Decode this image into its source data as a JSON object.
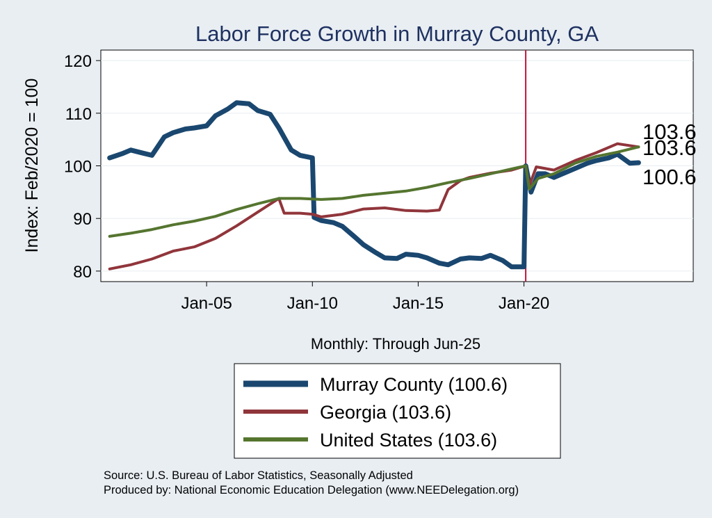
{
  "chart_data": {
    "type": "line",
    "title": "Labor Force Growth in Murray  County, GA",
    "xlabel": "Monthly: Through Jun-25",
    "ylabel": "Index: Feb/2020 = 100",
    "x_range": [
      "2000-01",
      "2028-01"
    ],
    "ylim": [
      78,
      122
    ],
    "yticks": [
      80,
      90,
      100,
      110,
      120
    ],
    "xticks": [
      {
        "x": "2005-01",
        "label": "Jan-05"
      },
      {
        "x": "2010-01",
        "label": "Jan-10"
      },
      {
        "x": "2015-01",
        "label": "Jan-15"
      },
      {
        "x": "2020-01",
        "label": "Jan-20"
      }
    ],
    "grid": true,
    "reference_line": "2020-02",
    "legend_position": "bottom",
    "series": [
      {
        "name": "Murray  County (100.6)",
        "color": "#1a476f",
        "end_label": "100.6",
        "points": [
          [
            "2000-06",
            101.5
          ],
          [
            "2001-01",
            102.3
          ],
          [
            "2001-06",
            103.0
          ],
          [
            "2002-01",
            102.4
          ],
          [
            "2002-06",
            102.0
          ],
          [
            "2003-01",
            105.5
          ],
          [
            "2003-06",
            106.3
          ],
          [
            "2004-01",
            107.0
          ],
          [
            "2004-06",
            107.2
          ],
          [
            "2005-01",
            107.6
          ],
          [
            "2005-06",
            109.5
          ],
          [
            "2006-01",
            110.8
          ],
          [
            "2006-06",
            112.0
          ],
          [
            "2007-01",
            111.8
          ],
          [
            "2007-06",
            110.5
          ],
          [
            "2008-01",
            109.8
          ],
          [
            "2008-06",
            107.2
          ],
          [
            "2009-01",
            103.0
          ],
          [
            "2009-06",
            102.0
          ],
          [
            "2010-01",
            101.5
          ],
          [
            "2010-02",
            90.2
          ],
          [
            "2010-06",
            89.6
          ],
          [
            "2011-01",
            89.2
          ],
          [
            "2011-06",
            88.5
          ],
          [
            "2012-01",
            86.5
          ],
          [
            "2012-06",
            85.0
          ],
          [
            "2013-01",
            83.5
          ],
          [
            "2013-06",
            82.5
          ],
          [
            "2014-01",
            82.4
          ],
          [
            "2014-06",
            83.2
          ],
          [
            "2015-01",
            83.0
          ],
          [
            "2015-06",
            82.5
          ],
          [
            "2016-01",
            81.5
          ],
          [
            "2016-06",
            81.2
          ],
          [
            "2017-01",
            82.3
          ],
          [
            "2017-06",
            82.5
          ],
          [
            "2018-01",
            82.4
          ],
          [
            "2018-06",
            83.0
          ],
          [
            "2019-01",
            82.0
          ],
          [
            "2019-06",
            80.8
          ],
          [
            "2020-01",
            80.8
          ],
          [
            "2020-02",
            100.0
          ],
          [
            "2020-05",
            95.0
          ],
          [
            "2020-09",
            98.5
          ],
          [
            "2021-01",
            98.5
          ],
          [
            "2021-06",
            97.8
          ],
          [
            "2022-01",
            98.8
          ],
          [
            "2022-06",
            99.5
          ],
          [
            "2023-01",
            100.5
          ],
          [
            "2023-06",
            101.0
          ],
          [
            "2024-01",
            101.5
          ],
          [
            "2024-06",
            102.2
          ],
          [
            "2025-01",
            100.5
          ],
          [
            "2025-06",
            100.6
          ]
        ]
      },
      {
        "name": "Georgia (103.6)",
        "color": "#90353b",
        "end_label": "103.6",
        "points": [
          [
            "2000-06",
            80.4
          ],
          [
            "2001-06",
            81.2
          ],
          [
            "2002-06",
            82.3
          ],
          [
            "2003-06",
            83.8
          ],
          [
            "2004-06",
            84.6
          ],
          [
            "2005-06",
            86.2
          ],
          [
            "2006-06",
            88.6
          ],
          [
            "2007-06",
            91.2
          ],
          [
            "2008-06",
            93.8
          ],
          [
            "2008-09",
            91.0
          ],
          [
            "2009-06",
            91.0
          ],
          [
            "2010-01",
            90.8
          ],
          [
            "2010-06",
            90.3
          ],
          [
            "2011-06",
            90.8
          ],
          [
            "2012-06",
            91.8
          ],
          [
            "2013-06",
            92.0
          ],
          [
            "2014-06",
            91.5
          ],
          [
            "2015-06",
            91.4
          ],
          [
            "2016-01",
            91.6
          ],
          [
            "2016-06",
            95.5
          ],
          [
            "2017-01",
            97.2
          ],
          [
            "2017-06",
            97.8
          ],
          [
            "2018-06",
            98.6
          ],
          [
            "2019-06",
            99.2
          ],
          [
            "2020-02",
            100.0
          ],
          [
            "2020-04",
            96.2
          ],
          [
            "2020-08",
            99.8
          ],
          [
            "2021-06",
            99.2
          ],
          [
            "2022-06",
            101.0
          ],
          [
            "2023-06",
            102.5
          ],
          [
            "2024-06",
            104.2
          ],
          [
            "2025-06",
            103.6
          ]
        ]
      },
      {
        "name": "United States (103.6)",
        "color": "#55752f",
        "end_label": "103.6",
        "points": [
          [
            "2000-06",
            86.6
          ],
          [
            "2001-06",
            87.2
          ],
          [
            "2002-06",
            87.9
          ],
          [
            "2003-06",
            88.8
          ],
          [
            "2004-06",
            89.5
          ],
          [
            "2005-06",
            90.4
          ],
          [
            "2006-06",
            91.7
          ],
          [
            "2007-06",
            92.8
          ],
          [
            "2008-06",
            93.8
          ],
          [
            "2009-06",
            93.8
          ],
          [
            "2010-06",
            93.6
          ],
          [
            "2011-06",
            93.8
          ],
          [
            "2012-06",
            94.4
          ],
          [
            "2013-06",
            94.8
          ],
          [
            "2014-06",
            95.2
          ],
          [
            "2015-06",
            95.9
          ],
          [
            "2016-06",
            96.8
          ],
          [
            "2017-06",
            97.6
          ],
          [
            "2018-06",
            98.5
          ],
          [
            "2019-06",
            99.4
          ],
          [
            "2020-02",
            100.0
          ],
          [
            "2020-04",
            95.6
          ],
          [
            "2020-09",
            97.6
          ],
          [
            "2021-06",
            98.5
          ],
          [
            "2022-06",
            100.5
          ],
          [
            "2023-06",
            101.8
          ],
          [
            "2024-06",
            102.6
          ],
          [
            "2025-06",
            103.6
          ]
        ]
      }
    ]
  },
  "source_line": "Source: U.S. Bureau of Labor Statistics, Seasonally Adjusted",
  "produced_line": "Produced by: National Economic Education Delegation (www.NEEDelegation.org)"
}
